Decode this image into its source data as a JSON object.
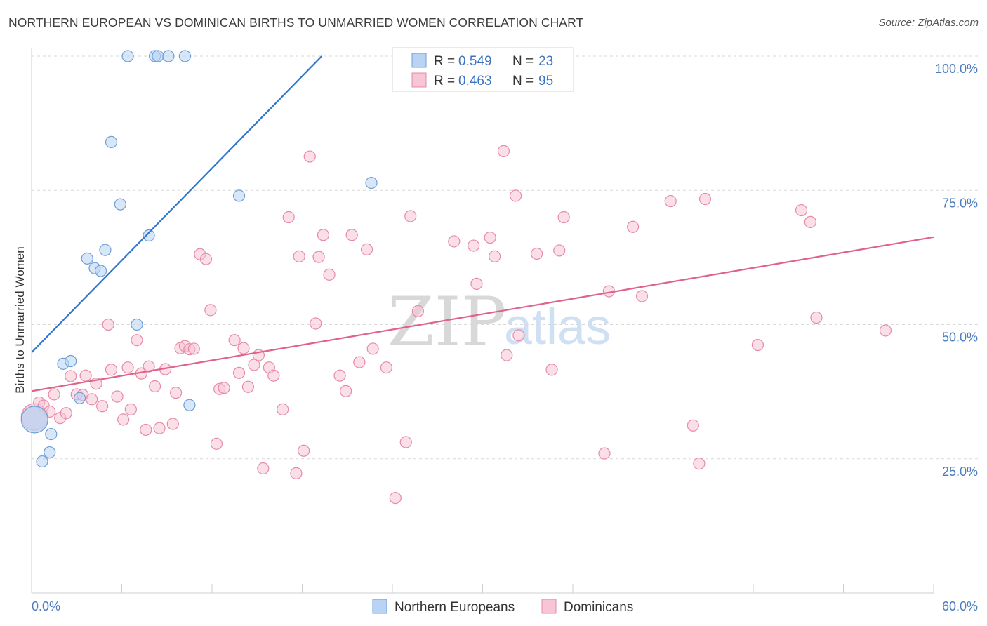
{
  "title": "NORTHERN EUROPEAN VS DOMINICAN BIRTHS TO UNMARRIED WOMEN CORRELATION CHART",
  "source": "Source: ZipAtlas.com",
  "watermark": {
    "zip": "ZIP",
    "atlas": "atlas"
  },
  "colors": {
    "blue_fill": "#b8d3f3",
    "blue_stroke": "#6f9fd8",
    "blue_line": "#2f74cf",
    "pink_fill": "#f7c5d3",
    "pink_stroke": "#e68aa8",
    "pink_line": "#e0628b",
    "grid": "#d9d9d9",
    "tick_text": "#4a7cc0"
  },
  "legend": {
    "rows": [
      {
        "r_label": "R = ",
        "r_value": "0.549",
        "n_label": "N = ",
        "n_value": "23"
      },
      {
        "r_label": "R = ",
        "r_value": "0.463",
        "n_label": "N = ",
        "n_value": "95"
      }
    ]
  },
  "bottom_legend": [
    "Northern Europeans",
    "Dominicans"
  ],
  "chart_data": {
    "type": "scatter",
    "title": "NORTHERN EUROPEAN VS DOMINICAN BIRTHS TO UNMARRIED WOMEN CORRELATION CHART",
    "xlabel": "",
    "ylabel": "Births to Unmarried Women",
    "xlim": [
      0,
      60
    ],
    "ylim": [
      0,
      105
    ],
    "x_tick_labels": [
      "0.0%",
      "60.0%"
    ],
    "y_ticks": [
      25,
      50,
      75,
      100
    ],
    "y_tick_labels": [
      "25.0%",
      "50.0%",
      "75.0%",
      "100.0%"
    ],
    "series": [
      {
        "name": "Northern Europeans",
        "R": 0.549,
        "N": 23,
        "trend": {
          "x0": 0,
          "y0": 44.8,
          "x1": 19.3,
          "y1": 100
        },
        "points": [
          [
            0.2,
            32.3,
            "big"
          ],
          [
            0.7,
            24.5
          ],
          [
            1.2,
            26.2
          ],
          [
            1.3,
            29.6
          ],
          [
            2.1,
            42.7
          ],
          [
            2.6,
            43.2
          ],
          [
            3.2,
            36.3
          ],
          [
            3.7,
            62.3
          ],
          [
            4.2,
            60.5
          ],
          [
            4.6,
            60.0
          ],
          [
            4.9,
            63.9
          ],
          [
            5.3,
            84.0
          ],
          [
            5.9,
            72.4
          ],
          [
            6.4,
            100
          ],
          [
            7.0,
            50.0
          ],
          [
            7.8,
            66.6
          ],
          [
            8.2,
            100
          ],
          [
            8.4,
            100
          ],
          [
            9.1,
            100
          ],
          [
            10.2,
            100
          ],
          [
            10.5,
            35.0
          ],
          [
            13.8,
            74.0
          ],
          [
            22.6,
            76.4
          ]
        ]
      },
      {
        "name": "Dominicans",
        "R": 0.463,
        "N": 95,
        "trend": {
          "x0": 0,
          "y0": 37.6,
          "x1": 60,
          "y1": 66.3
        },
        "points": [
          [
            0.2,
            32.8,
            "big"
          ],
          [
            0.5,
            35.5
          ],
          [
            0.8,
            34.9
          ],
          [
            1.2,
            33.8
          ],
          [
            1.5,
            37.0
          ],
          [
            1.9,
            32.6
          ],
          [
            2.3,
            33.5
          ],
          [
            2.6,
            40.4
          ],
          [
            3.0,
            37.0
          ],
          [
            3.4,
            36.9
          ],
          [
            3.6,
            40.5
          ],
          [
            4.0,
            36.1
          ],
          [
            4.3,
            39.0
          ],
          [
            4.7,
            34.8
          ],
          [
            5.1,
            50.0
          ],
          [
            5.3,
            41.6
          ],
          [
            5.7,
            36.6
          ],
          [
            6.1,
            32.3
          ],
          [
            6.4,
            42.0
          ],
          [
            6.6,
            34.2
          ],
          [
            7.0,
            47.1
          ],
          [
            7.3,
            40.9
          ],
          [
            7.6,
            30.4
          ],
          [
            7.8,
            42.2
          ],
          [
            8.2,
            38.5
          ],
          [
            8.5,
            30.7
          ],
          [
            8.9,
            41.7
          ],
          [
            9.4,
            31.5
          ],
          [
            9.6,
            37.3
          ],
          [
            9.9,
            45.6
          ],
          [
            10.2,
            46.0
          ],
          [
            10.5,
            45.4
          ],
          [
            10.8,
            45.5
          ],
          [
            11.2,
            63.1
          ],
          [
            11.6,
            62.2
          ],
          [
            11.9,
            52.7
          ],
          [
            12.3,
            27.8
          ],
          [
            12.5,
            38.0
          ],
          [
            12.8,
            38.2
          ],
          [
            13.5,
            47.1
          ],
          [
            13.8,
            41.0
          ],
          [
            14.1,
            45.6
          ],
          [
            14.4,
            38.4
          ],
          [
            14.8,
            42.5
          ],
          [
            15.1,
            44.3
          ],
          [
            15.4,
            23.2
          ],
          [
            15.8,
            42.0
          ],
          [
            16.1,
            40.5
          ],
          [
            16.7,
            34.2
          ],
          [
            17.1,
            70.0
          ],
          [
            17.6,
            22.3
          ],
          [
            17.8,
            62.7
          ],
          [
            18.1,
            26.5
          ],
          [
            18.5,
            81.3
          ],
          [
            18.9,
            50.2
          ],
          [
            19.1,
            62.6
          ],
          [
            19.4,
            66.7
          ],
          [
            19.8,
            59.3
          ],
          [
            20.5,
            40.5
          ],
          [
            20.9,
            37.6
          ],
          [
            21.3,
            66.7
          ],
          [
            21.8,
            43.0
          ],
          [
            22.3,
            64.0
          ],
          [
            22.7,
            45.5
          ],
          [
            23.6,
            42.0
          ],
          [
            24.2,
            17.7
          ],
          [
            24.9,
            28.1
          ],
          [
            25.2,
            70.2
          ],
          [
            25.7,
            52.5
          ],
          [
            28.1,
            65.5
          ],
          [
            29.4,
            64.7
          ],
          [
            29.6,
            57.6
          ],
          [
            30.5,
            66.2
          ],
          [
            30.8,
            62.7
          ],
          [
            31.4,
            82.3
          ],
          [
            31.6,
            44.3
          ],
          [
            32.2,
            74.0
          ],
          [
            32.4,
            48.0
          ],
          [
            33.6,
            63.2
          ],
          [
            34.6,
            41.6
          ],
          [
            35.1,
            63.8
          ],
          [
            35.4,
            70.0
          ],
          [
            38.1,
            26.0
          ],
          [
            38.4,
            56.2
          ],
          [
            40.0,
            68.2
          ],
          [
            40.6,
            55.3
          ],
          [
            42.5,
            73.0
          ],
          [
            44.0,
            31.2
          ],
          [
            44.4,
            24.1
          ],
          [
            44.8,
            73.4
          ],
          [
            48.3,
            46.2
          ],
          [
            51.2,
            71.3
          ],
          [
            51.8,
            69.1
          ],
          [
            52.2,
            51.3
          ],
          [
            56.8,
            48.9
          ]
        ]
      }
    ]
  }
}
